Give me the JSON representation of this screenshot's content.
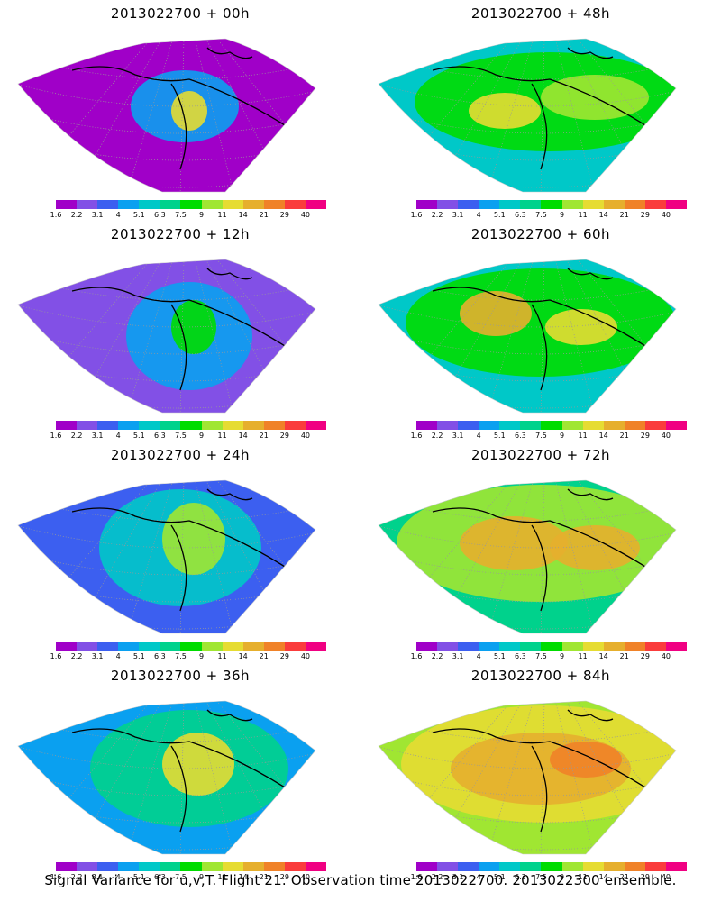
{
  "colorbar": {
    "colors": [
      "#a000c8",
      "#8250e6",
      "#3c5ff0",
      "#0aa0f0",
      "#00c8c8",
      "#00d28c",
      "#00dc00",
      "#a0e632",
      "#e6dc32",
      "#e6af2d",
      "#f08228",
      "#fa3c3c",
      "#f00082"
    ],
    "ticks": [
      "1.6",
      "2.2",
      "3.1",
      "4",
      "5.1",
      "6.3",
      "7.5",
      "9",
      "11",
      "14",
      "21",
      "29",
      "40"
    ]
  },
  "panels": [
    {
      "title": "2013022700 + 00h"
    },
    {
      "title": "2013022700 + 48h"
    },
    {
      "title": "2013022700 + 12h"
    },
    {
      "title": "2013022700 + 60h"
    },
    {
      "title": "2013022700 + 24h"
    },
    {
      "title": "2013022700 + 72h"
    },
    {
      "title": "2013022700 + 36h"
    },
    {
      "title": "2013022700 + 84h"
    }
  ],
  "caption": "Signal Variance for u,v,T. Flight 21. Observation time 2013022700. 2013022300 ensemble."
}
